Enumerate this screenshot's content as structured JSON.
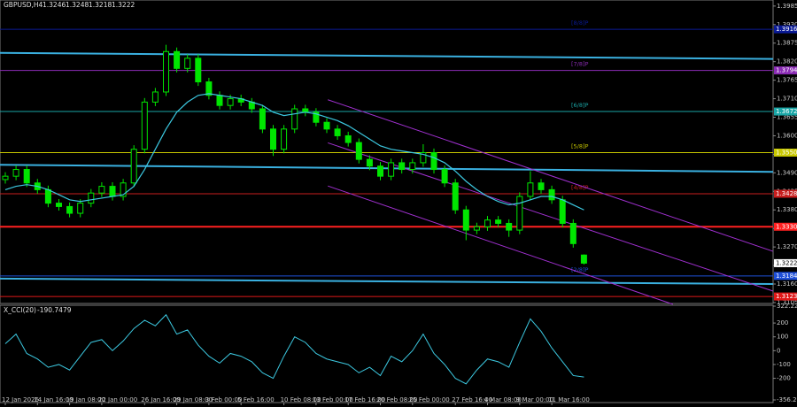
{
  "chart_data": [
    {
      "type": "candlestick",
      "symbol": "GBPUSD,H4",
      "color": "#00e600",
      "categories": [
        "12 Jan 2026",
        null,
        null,
        "14 Jan 16:00",
        null,
        null,
        "19 Jan 08:00",
        null,
        null,
        "22 Jan 00:00",
        null,
        null,
        null,
        "26 Jan 16:00",
        null,
        null,
        "29 Jan 08:00",
        null,
        null,
        "3 Feb 00:00",
        null,
        null,
        "5 Feb 16:00",
        null,
        null,
        null,
        "10 Feb 08:00",
        null,
        null,
        "13 Feb 00:00",
        null,
        null,
        "17 Feb 16:00",
        null,
        null,
        "20 Feb 08:00",
        null,
        null,
        "25 Feb 00:00",
        null,
        null,
        null,
        "27 Feb 16:00",
        null,
        null,
        "4 Mar 08:00",
        null,
        null,
        "9 Mar 00:00",
        null,
        null,
        "11 Mar 16:00",
        null,
        null,
        null
      ],
      "open": [
        1.347,
        1.348,
        1.35,
        1.346,
        1.344,
        1.34,
        1.339,
        1.337,
        1.34,
        1.343,
        1.345,
        1.342,
        1.346,
        1.356,
        1.37,
        1.373,
        1.385,
        1.38,
        1.383,
        1.376,
        1.372,
        1.369,
        1.371,
        1.37,
        1.368,
        1.362,
        1.356,
        1.362,
        1.368,
        1.367,
        1.364,
        1.362,
        1.36,
        1.358,
        1.353,
        1.351,
        1.348,
        1.352,
        1.35,
        1.352,
        1.355,
        1.35,
        1.346,
        1.338,
        1.332,
        1.333,
        1.335,
        1.334,
        1.332,
        1.342,
        1.346,
        1.344,
        1.341,
        1.334,
        1.3246
      ],
      "high": [
        1.3492,
        1.3512,
        1.3512,
        1.3472,
        1.3452,
        1.3412,
        1.3402,
        1.3412,
        1.3442,
        1.3462,
        1.3462,
        1.3472,
        1.3572,
        1.3712,
        1.3742,
        1.387,
        1.3862,
        1.3842,
        1.3842,
        1.3772,
        1.3732,
        1.3722,
        1.3722,
        1.3712,
        1.3692,
        1.3632,
        1.3632,
        1.3692,
        1.3692,
        1.3682,
        1.3652,
        1.3632,
        1.3612,
        1.3592,
        1.3542,
        1.3522,
        1.3532,
        1.3532,
        1.3532,
        1.3575,
        1.3562,
        1.3512,
        1.3472,
        1.3392,
        1.3342,
        1.3362,
        1.3362,
        1.3352,
        1.3432,
        1.3495,
        1.3472,
        1.3452,
        1.3422,
        1.3352,
        1.3248
      ],
      "low": [
        1.3458,
        1.3468,
        1.3448,
        1.3428,
        1.3388,
        1.3378,
        1.3358,
        1.3358,
        1.3388,
        1.3418,
        1.3408,
        1.3408,
        1.3448,
        1.3548,
        1.3688,
        1.3718,
        1.3788,
        1.3788,
        1.3748,
        1.3708,
        1.3678,
        1.3678,
        1.3688,
        1.3668,
        1.3608,
        1.354,
        1.3548,
        1.3608,
        1.3658,
        1.3628,
        1.3608,
        1.3588,
        1.3568,
        1.3518,
        1.3498,
        1.3468,
        1.3468,
        1.3488,
        1.3488,
        1.3508,
        1.3488,
        1.3448,
        1.3368,
        1.329,
        1.3308,
        1.3318,
        1.3328,
        1.33,
        1.3308,
        1.3408,
        1.3428,
        1.3398,
        1.3328,
        1.3268,
        1.3218
      ],
      "close": [
        1.348,
        1.35,
        1.346,
        1.344,
        1.34,
        1.339,
        1.337,
        1.34,
        1.343,
        1.345,
        1.342,
        1.346,
        1.356,
        1.37,
        1.373,
        1.385,
        1.38,
        1.383,
        1.376,
        1.372,
        1.369,
        1.371,
        1.37,
        1.368,
        1.362,
        1.356,
        1.362,
        1.368,
        1.367,
        1.364,
        1.362,
        1.36,
        1.358,
        1.353,
        1.351,
        1.348,
        1.352,
        1.35,
        1.352,
        1.355,
        1.35,
        1.346,
        1.338,
        1.332,
        1.333,
        1.335,
        1.334,
        1.332,
        1.342,
        1.346,
        1.344,
        1.341,
        1.334,
        1.328,
        1.3222
      ],
      "ma": {
        "color": "#3cc8e0",
        "values": [
          1.344,
          1.345,
          1.3455,
          1.345,
          1.344,
          1.3425,
          1.341,
          1.3405,
          1.341,
          1.3415,
          1.342,
          1.3425,
          1.345,
          1.35,
          1.356,
          1.362,
          1.367,
          1.37,
          1.372,
          1.3725,
          1.372,
          1.3715,
          1.371,
          1.37,
          1.369,
          1.367,
          1.366,
          1.3665,
          1.367,
          1.3665,
          1.3655,
          1.3645,
          1.363,
          1.361,
          1.359,
          1.357,
          1.356,
          1.3555,
          1.355,
          1.3545,
          1.3535,
          1.352,
          1.3495,
          1.3465,
          1.344,
          1.342,
          1.3405,
          1.3395,
          1.34,
          1.341,
          1.342,
          1.342,
          1.341,
          1.3395,
          1.338
        ]
      },
      "ylim": [
        1.3097,
        1.4003
      ],
      "yticks": [
        1.3985,
        {
          "value": 1.393,
          "label": "1.3930"
        },
        1.3875,
        {
          "value": 1.382,
          "label": "1.3820"
        },
        1.3765,
        {
          "value": 1.371,
          "label": "1.3710"
        },
        1.3655,
        {
          "value": 1.36,
          "label": "1.3600"
        },
        1.3545,
        {
          "value": 1.349,
          "label": "1.3490"
        },
        1.3435,
        {
          "value": 1.338,
          "label": "1.3380"
        },
        1.3325,
        {
          "value": 1.327,
          "label": "1.3270"
        },
        1.3215,
        {
          "value": 1.316,
          "label": "1.3160"
        },
        1.3105
      ],
      "levels": [
        {
          "value": 1.3916,
          "color": "#0a1a96",
          "label": "[8/8]P"
        },
        {
          "value": 1.3794,
          "color": "#8a2bb4",
          "label": "[7/8]P"
        },
        {
          "value": 1.3672,
          "color": "#1aa6a6",
          "label": "[6/8]P"
        },
        {
          "value": 1.355,
          "value_label": "1.3550",
          "color": "#c8c800",
          "label": "[5/8]P"
        },
        {
          "value": 1.3428,
          "color": "#c81e1e",
          "label": "[4/8]P"
        },
        {
          "value": 1.333,
          "value_label": "1.3330",
          "color": "#ff2020"
        },
        {
          "value": 1.3184,
          "color": "#1e4fd8",
          "label": "[2/8]P"
        },
        {
          "value": 1.3123,
          "color": "#e01818"
        }
      ],
      "trendlines": [
        {
          "y": [
            1.3846,
            1.3828
          ],
          "color": "#3ab0e0"
        },
        {
          "y": [
            1.3514,
            1.3493
          ],
          "color": "#3ab0e0"
        },
        {
          "y": [
            1.3176,
            1.316
          ],
          "color": "#3ab0e0"
        }
      ],
      "channel": [
        {
          "x": [
            30.1,
            71.65
          ],
          "y": [
            1.3707,
            1.3257
          ],
          "color": "#a030d0"
        },
        {
          "x": [
            30.1,
            71.65
          ],
          "y": [
            1.3579,
            1.3139
          ],
          "color": "#a030d0"
        },
        {
          "x": [
            30.1,
            62.3
          ],
          "y": [
            1.3451,
            1.31
          ],
          "color": "#a030d0"
        }
      ]
    },
    {
      "type": "line",
      "title": "X_CCI(20)",
      "color": "#3cc8e0",
      "values": [
        50,
        120,
        -20,
        -60,
        -120,
        -100,
        -140,
        -40,
        60,
        80,
        0,
        70,
        160,
        220,
        180,
        260,
        120,
        150,
        40,
        -40,
        -90,
        -20,
        -40,
        -80,
        -160,
        -200,
        -40,
        100,
        60,
        -20,
        -60,
        -80,
        -100,
        -160,
        -120,
        -180,
        -40,
        -80,
        0,
        120,
        -20,
        -100,
        -200,
        -240,
        -140,
        -60,
        -80,
        -120,
        60,
        230,
        140,
        20,
        -80,
        -180,
        -190.7479
      ],
      "ylim": [
        -356.2214,
        322.2214
      ],
      "yticks": [
        322.2214,
        200,
        100,
        0,
        -100,
        -200,
        -356.2214
      ]
    }
  ]
}
